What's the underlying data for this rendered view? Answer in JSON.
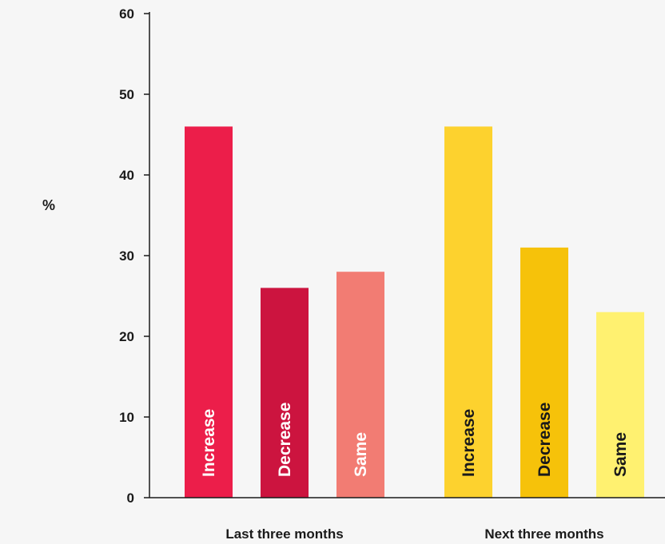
{
  "chart_data": {
    "type": "bar",
    "ylabel": "%",
    "ylim": [
      0,
      60
    ],
    "yticks": [
      0,
      10,
      20,
      30,
      40,
      50,
      60
    ],
    "grid": false,
    "groups": [
      {
        "name": "Last three months",
        "bars": [
          {
            "label": "Increase",
            "value": 46,
            "color": "#ec1e4a",
            "text_color": "#ffffff"
          },
          {
            "label": "Decrease",
            "value": 26,
            "color": "#cc143f",
            "text_color": "#ffffff"
          },
          {
            "label": "Same",
            "value": 28,
            "color": "#f27c73",
            "text_color": "#ffffff"
          }
        ]
      },
      {
        "name": "Next three months",
        "bars": [
          {
            "label": "Increase",
            "value": 46,
            "color": "#fdd22e",
            "text_color": "#1a1a1a"
          },
          {
            "label": "Decrease",
            "value": 31,
            "color": "#f6c20a",
            "text_color": "#1a1a1a"
          },
          {
            "label": "Same",
            "value": 23,
            "color": "#fff170",
            "text_color": "#1a1a1a"
          }
        ]
      }
    ]
  }
}
